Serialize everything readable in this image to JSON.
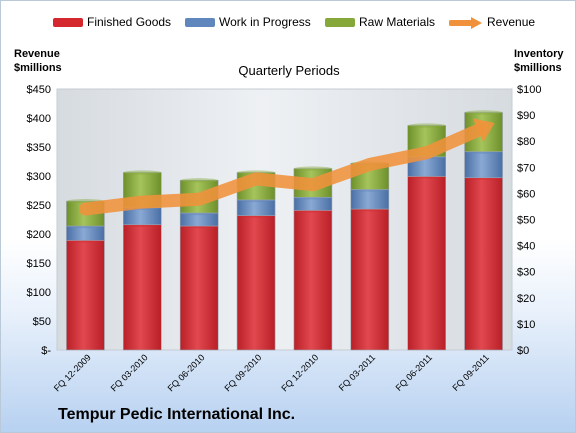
{
  "chart_data": {
    "type": "bar",
    "stacked": true,
    "title": "Quarterly Periods",
    "company": "Tempur Pedic International Inc.",
    "categories": [
      "FQ 12-2009",
      "FQ 03-2010",
      "FQ 06-2010",
      "FQ 09-2010",
      "FQ 12-2010",
      "FQ 03-2011",
      "FQ 06-2011",
      "FQ 09-2011"
    ],
    "series": [
      {
        "name": "Finished Goods",
        "axis": "right",
        "color": "#d4272e",
        "values": [
          42,
          48,
          47.5,
          51.5,
          53.5,
          54,
          66.5,
          66
        ]
      },
      {
        "name": "Work in Progress",
        "axis": "right",
        "color": "#5f86bd",
        "values": [
          5.5,
          6.5,
          5,
          6,
          5,
          7.5,
          7.5,
          10
        ]
      },
      {
        "name": "Raw Materials",
        "axis": "right",
        "color": "#86a83a",
        "values": [
          9.5,
          13.5,
          12.5,
          10.5,
          11,
          10,
          12,
          15
        ]
      },
      {
        "name": "Revenue",
        "axis": "left",
        "type": "line",
        "color": "#f0923b",
        "values": [
          243,
          255,
          260,
          295,
          285,
          320,
          340,
          383
        ]
      }
    ],
    "left_axis": {
      "label": "Revenue $millions",
      "ylim": [
        0,
        450
      ],
      "ticks": [
        "$-",
        "$50",
        "$100",
        "$150",
        "$200",
        "$250",
        "$300",
        "$350",
        "$400",
        "$450"
      ]
    },
    "right_axis": {
      "label": "Inventory $millions",
      "ylim": [
        0,
        100
      ],
      "ticks": [
        "$0",
        "$10",
        "$20",
        "$30",
        "$40",
        "$50",
        "$60",
        "$70",
        "$80",
        "$90",
        "$100"
      ]
    },
    "grid": false,
    "legend_position": "top"
  },
  "texts": {
    "left_title_1": "Revenue",
    "left_title_2": "$millions",
    "right_title_1": "Inventory",
    "right_title_2": "$millions"
  }
}
